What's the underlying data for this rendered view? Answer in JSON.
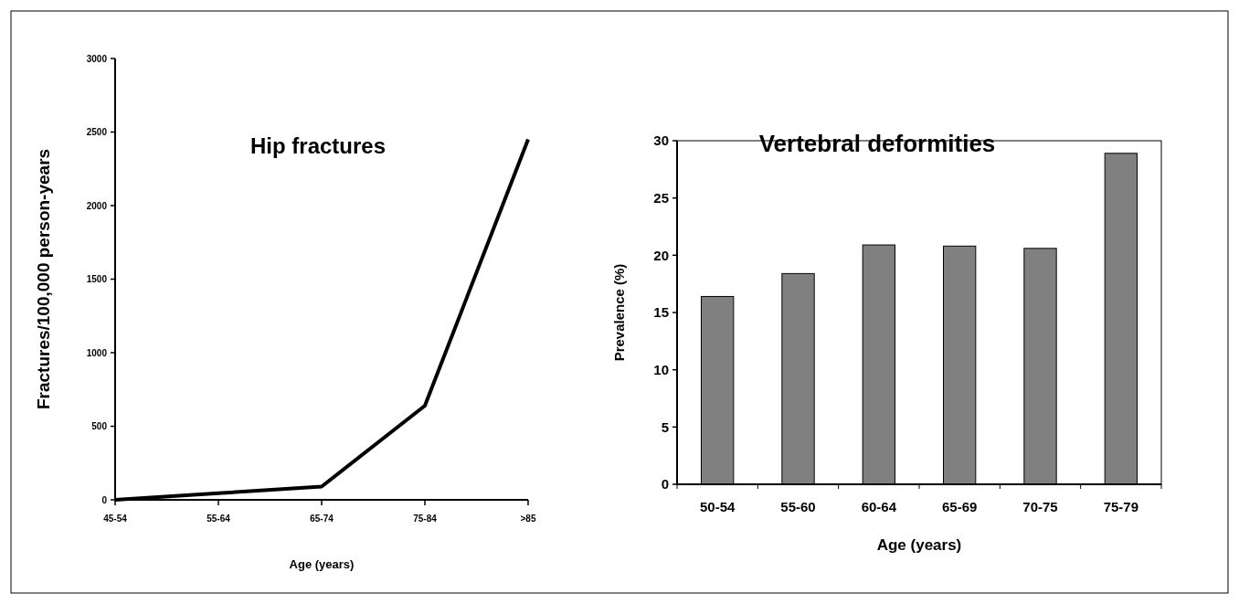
{
  "chart_data": [
    {
      "type": "line",
      "title": "Hip fractures",
      "xlabel": "Age (years)",
      "ylabel": "Fractures/100,000 person-years",
      "categories": [
        "45-54",
        "55-64",
        "65-74",
        "75-84",
        ">85"
      ],
      "series": [
        {
          "color": "#000000",
          "values": [
            0,
            45,
            90,
            640,
            2450
          ]
        }
      ],
      "ylim": [
        0,
        3000
      ],
      "yticks": [
        0,
        500,
        1000,
        1500,
        2000,
        2500,
        3000
      ],
      "grid": false,
      "marker": "none",
      "line_style": "solid"
    },
    {
      "type": "bar",
      "title": "Vertebral deformities",
      "xlabel": "Age (years)",
      "ylabel": "Prevalence (%)",
      "categories": [
        "50-54",
        "55-60",
        "60-64",
        "65-69",
        "70-75",
        "75-79"
      ],
      "series": [
        {
          "color": "#808080",
          "values": [
            16.4,
            18.4,
            20.9,
            20.8,
            20.6,
            28.9
          ]
        }
      ],
      "ylim": [
        0,
        30
      ],
      "yticks": [
        0,
        5,
        10,
        15,
        20,
        25,
        30
      ],
      "grid": false
    }
  ]
}
